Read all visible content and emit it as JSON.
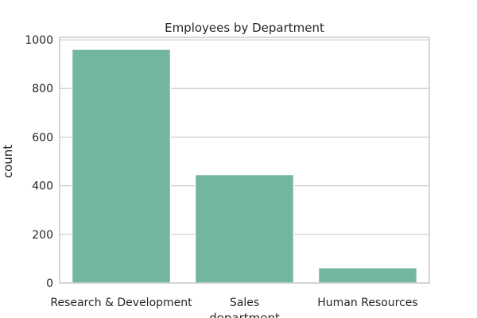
{
  "chart_data": {
    "type": "bar",
    "title": "Employees by Department",
    "xlabel": "department",
    "ylabel": "count",
    "categories": [
      "Research & Development",
      "Sales",
      "Human Resources"
    ],
    "values": [
      961,
      446,
      63
    ],
    "ylim": [
      0,
      1010
    ],
    "yticks": [
      "0",
      "200",
      "400",
      "600",
      "800",
      "1000"
    ],
    "grid": true,
    "bar_color": "#72b6a1"
  }
}
